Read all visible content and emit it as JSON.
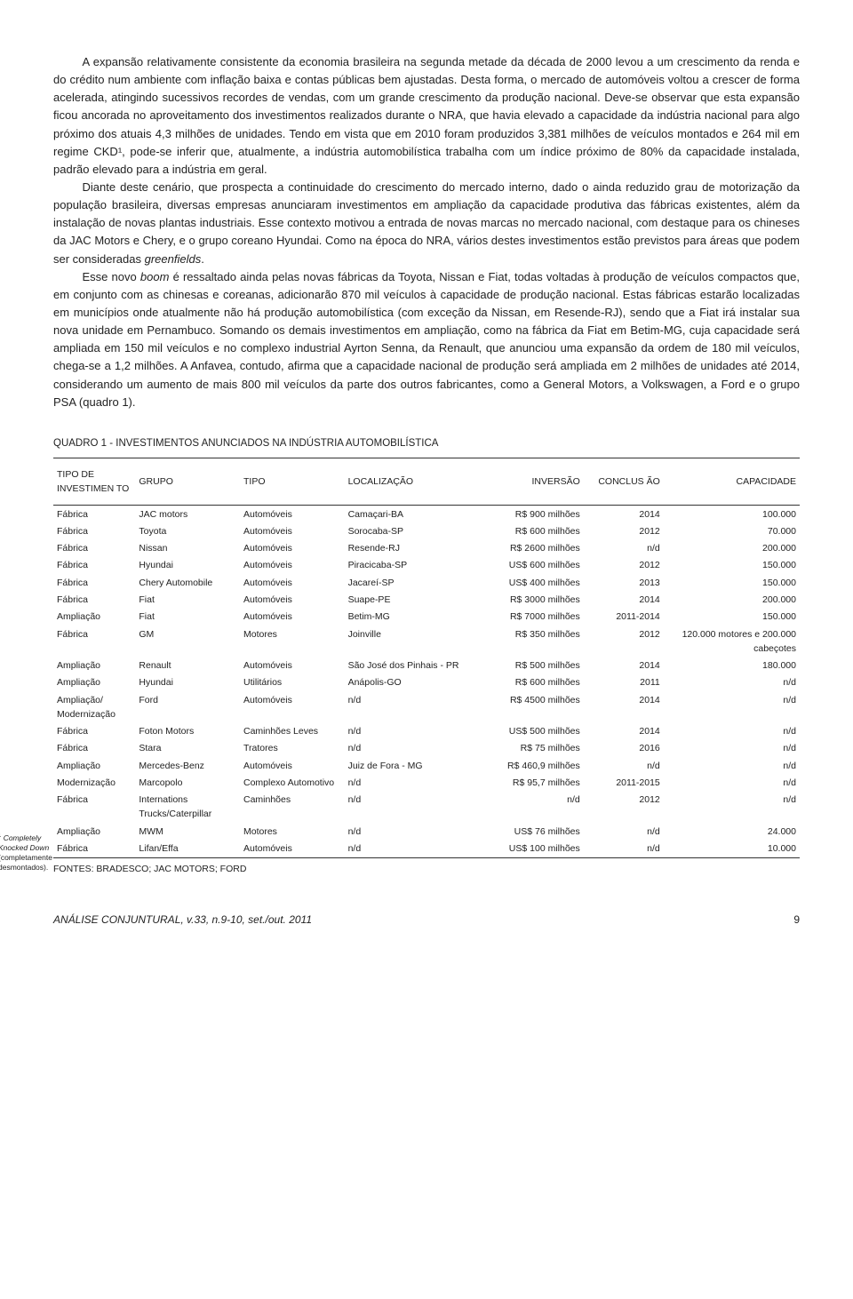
{
  "paragraphs": [
    "A expansão relativamente consistente da economia brasileira na segunda metade da década de 2000 levou a um crescimento da renda e do crédito num ambiente com inflação baixa e contas públicas bem ajustadas. Desta forma, o mercado de automóveis voltou a crescer de forma acelerada, atingindo sucessivos recordes de vendas, com um grande crescimento da produção nacional. Deve-se observar que esta expansão ficou ancorada no aproveitamento dos investimentos realizados durante o NRA, que havia elevado a capacidade da indústria nacional para algo próximo dos atuais 4,3 milhões de unidades. Tendo em vista que em 2010 foram produzidos 3,381 milhões de veículos montados e 264 mil em regime CKD¹, pode-se inferir que, atualmente, a indústria automobilística trabalha com um índice próximo de 80% da capacidade instalada, padrão elevado para a indústria em geral.",
    "Diante deste cenário, que prospecta a continuidade do crescimento do mercado interno, dado o ainda reduzido grau de motorização da população brasileira, diversas empresas anunciaram investimentos em ampliação da capacidade produtiva das fábricas existentes, além da instalação de novas plantas industriais. Esse contexto motivou a entrada de novas marcas no mercado nacional, com destaque para os chineses da JAC Motors e Chery, e o grupo coreano Hyundai. Como na época do NRA, vários destes investimentos estão previstos para áreas que podem ser consideradas <i>greenfields</i>.",
    "Esse novo <i>boom</i> é ressaltado ainda pelas novas fábricas da Toyota, Nissan e Fiat, todas voltadas à produção de veículos compactos que, em conjunto com as chinesas e coreanas, adicionarão 870 mil veículos à capacidade de produção nacional. Estas fábricas estarão localizadas em municípios onde atualmente não há produção automobilística (com exceção da Nissan, em Resende-RJ), sendo que a Fiat irá instalar sua nova unidade em Pernambuco. Somando os demais investimentos em ampliação, como na fábrica da Fiat em Betim-MG, cuja capacidade será ampliada em 150 mil veículos e no complexo industrial Ayrton Senna, da Renault, que anunciou uma expansão da ordem de 180 mil veículos, chega-se a 1,2 milhões. A Anfavea, contudo, afirma que a capacidade nacional de produção será ampliada em 2 milhões de unidades até 2014, considerando um aumento de mais 800 mil veículos da parte dos outros fabricantes, como a General Motors, a Volkswagen, a Ford e o grupo PSA (quadro 1)."
  ],
  "table": {
    "title": "QUADRO 1 - INVESTIMENTOS ANUNCIADOS NA INDÚSTRIA AUTOMOBILÍSTICA",
    "columns": [
      "TIPO DE INVESTIMEN TO",
      "GRUPO",
      "TIPO",
      "LOCALIZAÇÃO",
      "INVERSÃO",
      "CONCLUS ÃO",
      "CAPACIDADE"
    ],
    "rows": [
      [
        "Fábrica",
        "JAC motors",
        "Automóveis",
        "Camaçari-BA",
        "R$ 900 milhões",
        "2014",
        "100.000"
      ],
      [
        "Fábrica",
        "Toyota",
        "Automóveis",
        "Sorocaba-SP",
        "R$ 600 milhões",
        "2012",
        "70.000"
      ],
      [
        "Fábrica",
        "Nissan",
        "Automóveis",
        "Resende-RJ",
        "R$ 2600 milhões",
        "n/d",
        "200.000"
      ],
      [
        "Fábrica",
        "Hyundai",
        "Automóveis",
        "Piracicaba-SP",
        "US$ 600 milhões",
        "2012",
        "150.000"
      ],
      [
        "Fábrica",
        "Chery Automobile",
        "Automóveis",
        "Jacareí-SP",
        "US$ 400 milhões",
        "2013",
        "150.000"
      ],
      [
        "Fábrica",
        "Fiat",
        "Automóveis",
        "Suape-PE",
        "R$ 3000 milhões",
        "2014",
        "200.000"
      ],
      [
        "Ampliação",
        "Fiat",
        "Automóveis",
        "Betim-MG",
        "R$ 7000 milhões",
        "2011-2014",
        "150.000"
      ],
      [
        "Fábrica",
        "GM",
        "Motores",
        "Joinville",
        "R$ 350 milhões",
        "2012",
        "120.000 motores e 200.000 cabeçotes"
      ],
      [
        "Ampliação",
        "Renault",
        "Automóveis",
        "São José dos Pinhais - PR",
        "R$ 500 milhões",
        "2014",
        "180.000"
      ],
      [
        "Ampliação",
        "Hyundai",
        "Utilitários",
        "Anápolis-GO",
        "R$ 600 milhões",
        "2011",
        "n/d"
      ],
      [
        "Ampliação/ Modernização",
        "Ford",
        "Automóveis",
        "n/d",
        "R$ 4500 milhões",
        "2014",
        "n/d"
      ],
      [
        "Fábrica",
        "Foton Motors",
        "Caminhões Leves",
        "n/d",
        "US$ 500 milhões",
        "2014",
        "n/d"
      ],
      [
        "Fábrica",
        "Stara",
        "Tratores",
        "n/d",
        "R$ 75 milhões",
        "2016",
        "n/d"
      ],
      [
        "Ampliação",
        "Mercedes-Benz",
        "Automóveis",
        "Juiz de Fora - MG",
        "R$ 460,9 milhões",
        "n/d",
        "n/d"
      ],
      [
        "Modernização",
        "Marcopolo",
        "Complexo Automotivo",
        "n/d",
        "R$ 95,7 milhões",
        "2011-2015",
        "n/d"
      ],
      [
        "Fábrica",
        "Internations Trucks/Caterpillar",
        "Caminhões",
        "n/d",
        "n/d",
        "2012",
        "n/d"
      ],
      [
        "Ampliação",
        "MWM",
        "Motores",
        "n/d",
        "US$ 76 milhões",
        "n/d",
        "24.000"
      ],
      [
        "Fábrica",
        "Lifan/Effa",
        "Automóveis",
        "n/d",
        "US$ 100 milhões",
        "n/d",
        "10.000"
      ]
    ],
    "sources": "FONTES: BRADESCO; JAC MOTORS; FORD"
  },
  "footnote": {
    "num": "1",
    "text_italic": "Completely Knocked Down",
    "text_rest": " (completamente desmontados)."
  },
  "footer": {
    "publication": "ANÁLISE CONJUNTURAL, v.33, n.9-10, set./out. 2011",
    "page": "9"
  }
}
